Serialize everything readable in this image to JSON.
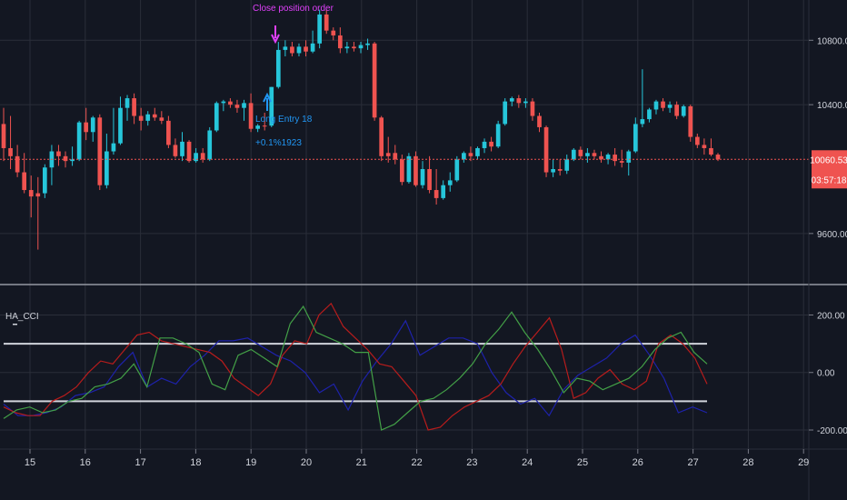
{
  "indicator": {
    "label": "HA_CCI"
  },
  "annotations": {
    "close_order": "Close position order",
    "long_entry": "Long Entry 18",
    "long_entry_pnl": "+0.1%1923"
  },
  "price_tag": {
    "value": "10060.53",
    "countdown": "03:57:18"
  },
  "colors": {
    "background": "#131722",
    "grid": "#2a2e39",
    "up": "#26c6da",
    "down": "#ef5350",
    "cci_blue": "#1e22aa",
    "cci_red": "#b71c1c",
    "cci_green": "#43a047",
    "level_line": "#d1d4dc",
    "annotation": "#e040fb",
    "entry": "#2196f3"
  },
  "chart_data": [
    {
      "type": "candlestick",
      "title": "",
      "ylim": [
        9300,
        11050
      ],
      "y_ticks": [
        "10800.00",
        "10400.00",
        "9600.00"
      ],
      "last_price": 10060.53,
      "candles": [
        {
          "o": 10280,
          "h": 10380,
          "l": 10050,
          "c": 10130,
          "d": "down"
        },
        {
          "o": 10130,
          "h": 10330,
          "l": 10000,
          "c": 10080,
          "d": "down"
        },
        {
          "o": 10080,
          "h": 10150,
          "l": 9950,
          "c": 9980,
          "d": "down"
        },
        {
          "o": 9980,
          "h": 10100,
          "l": 9850,
          "c": 9870,
          "d": "down"
        },
        {
          "o": 9870,
          "h": 9960,
          "l": 9700,
          "c": 9830,
          "d": "down"
        },
        {
          "o": 9830,
          "h": 9950,
          "l": 9500,
          "c": 9850,
          "d": "down"
        },
        {
          "o": 9850,
          "h": 10030,
          "l": 9820,
          "c": 10010,
          "d": "up"
        },
        {
          "o": 10010,
          "h": 10150,
          "l": 9900,
          "c": 10110,
          "d": "up"
        },
        {
          "o": 10110,
          "h": 10150,
          "l": 10020,
          "c": 10080,
          "d": "down"
        },
        {
          "o": 10080,
          "h": 10110,
          "l": 10010,
          "c": 10050,
          "d": "down"
        },
        {
          "o": 10050,
          "h": 10140,
          "l": 10020,
          "c": 10060,
          "d": "up"
        },
        {
          "o": 10060,
          "h": 10300,
          "l": 10050,
          "c": 10290,
          "d": "up"
        },
        {
          "o": 10290,
          "h": 10380,
          "l": 10180,
          "c": 10230,
          "d": "down"
        },
        {
          "o": 10230,
          "h": 10330,
          "l": 10170,
          "c": 10320,
          "d": "up"
        },
        {
          "o": 10320,
          "h": 10340,
          "l": 9870,
          "c": 9900,
          "d": "down"
        },
        {
          "o": 9900,
          "h": 10220,
          "l": 9880,
          "c": 10110,
          "d": "up"
        },
        {
          "o": 10110,
          "h": 10380,
          "l": 10090,
          "c": 10160,
          "d": "up"
        },
        {
          "o": 10160,
          "h": 10450,
          "l": 10150,
          "c": 10380,
          "d": "up"
        },
        {
          "o": 10380,
          "h": 10460,
          "l": 10300,
          "c": 10440,
          "d": "up"
        },
        {
          "o": 10440,
          "h": 10470,
          "l": 10280,
          "c": 10330,
          "d": "down"
        },
        {
          "o": 10330,
          "h": 10380,
          "l": 10240,
          "c": 10300,
          "d": "down"
        },
        {
          "o": 10300,
          "h": 10360,
          "l": 10270,
          "c": 10340,
          "d": "up"
        },
        {
          "o": 10340,
          "h": 10380,
          "l": 10300,
          "c": 10320,
          "d": "down"
        },
        {
          "o": 10320,
          "h": 10360,
          "l": 10280,
          "c": 10300,
          "d": "down"
        },
        {
          "o": 10300,
          "h": 10330,
          "l": 10130,
          "c": 10150,
          "d": "down"
        },
        {
          "o": 10150,
          "h": 10190,
          "l": 10070,
          "c": 10080,
          "d": "down"
        },
        {
          "o": 10080,
          "h": 10230,
          "l": 10050,
          "c": 10170,
          "d": "up"
        },
        {
          "o": 10170,
          "h": 10180,
          "l": 10040,
          "c": 10050,
          "d": "down"
        },
        {
          "o": 10050,
          "h": 10130,
          "l": 10040,
          "c": 10100,
          "d": "up"
        },
        {
          "o": 10100,
          "h": 10130,
          "l": 10040,
          "c": 10060,
          "d": "down"
        },
        {
          "o": 10060,
          "h": 10260,
          "l": 10050,
          "c": 10240,
          "d": "up"
        },
        {
          "o": 10240,
          "h": 10420,
          "l": 10230,
          "c": 10410,
          "d": "up"
        },
        {
          "o": 10410,
          "h": 10430,
          "l": 10360,
          "c": 10420,
          "d": "up"
        },
        {
          "o": 10420,
          "h": 10440,
          "l": 10380,
          "c": 10400,
          "d": "down"
        },
        {
          "o": 10400,
          "h": 10430,
          "l": 10350,
          "c": 10380,
          "d": "down"
        },
        {
          "o": 10380,
          "h": 10430,
          "l": 10300,
          "c": 10410,
          "d": "up"
        },
        {
          "o": 10410,
          "h": 10470,
          "l": 10230,
          "c": 10250,
          "d": "down"
        },
        {
          "o": 10250,
          "h": 10280,
          "l": 10230,
          "c": 10270,
          "d": "up"
        },
        {
          "o": 10270,
          "h": 10350,
          "l": 10240,
          "c": 10270,
          "d": "down"
        },
        {
          "o": 10270,
          "h": 10510,
          "l": 10260,
          "c": 10510,
          "d": "up"
        },
        {
          "o": 10510,
          "h": 10790,
          "l": 10500,
          "c": 10740,
          "d": "up"
        },
        {
          "o": 10740,
          "h": 10800,
          "l": 10700,
          "c": 10760,
          "d": "up"
        },
        {
          "o": 10760,
          "h": 10790,
          "l": 10700,
          "c": 10720,
          "d": "down"
        },
        {
          "o": 10720,
          "h": 10780,
          "l": 10700,
          "c": 10760,
          "d": "up"
        },
        {
          "o": 10760,
          "h": 10800,
          "l": 10700,
          "c": 10730,
          "d": "down"
        },
        {
          "o": 10730,
          "h": 10860,
          "l": 10720,
          "c": 10780,
          "d": "up"
        },
        {
          "o": 10780,
          "h": 10990,
          "l": 10750,
          "c": 10960,
          "d": "up"
        },
        {
          "o": 10960,
          "h": 10990,
          "l": 10840,
          "c": 10860,
          "d": "down"
        },
        {
          "o": 10860,
          "h": 10880,
          "l": 10800,
          "c": 10830,
          "d": "down"
        },
        {
          "o": 10830,
          "h": 10880,
          "l": 10720,
          "c": 10750,
          "d": "down"
        },
        {
          "o": 10750,
          "h": 10790,
          "l": 10720,
          "c": 10760,
          "d": "up"
        },
        {
          "o": 10760,
          "h": 10790,
          "l": 10730,
          "c": 10750,
          "d": "down"
        },
        {
          "o": 10750,
          "h": 10790,
          "l": 10720,
          "c": 10770,
          "d": "up"
        },
        {
          "o": 10770,
          "h": 10810,
          "l": 10740,
          "c": 10780,
          "d": "up"
        },
        {
          "o": 10780,
          "h": 10790,
          "l": 10300,
          "c": 10320,
          "d": "down"
        },
        {
          "o": 10320,
          "h": 10330,
          "l": 10050,
          "c": 10080,
          "d": "down"
        },
        {
          "o": 10080,
          "h": 10200,
          "l": 10040,
          "c": 10100,
          "d": "down"
        },
        {
          "o": 10100,
          "h": 10150,
          "l": 10030,
          "c": 10060,
          "d": "down"
        },
        {
          "o": 10060,
          "h": 10090,
          "l": 9900,
          "c": 9920,
          "d": "down"
        },
        {
          "o": 9920,
          "h": 10100,
          "l": 9910,
          "c": 10080,
          "d": "up"
        },
        {
          "o": 10080,
          "h": 10110,
          "l": 9890,
          "c": 9900,
          "d": "down"
        },
        {
          "o": 9900,
          "h": 10050,
          "l": 9880,
          "c": 10000,
          "d": "up"
        },
        {
          "o": 10000,
          "h": 10080,
          "l": 9850,
          "c": 9870,
          "d": "down"
        },
        {
          "o": 9870,
          "h": 10000,
          "l": 9780,
          "c": 9820,
          "d": "down"
        },
        {
          "o": 9820,
          "h": 9930,
          "l": 9810,
          "c": 9900,
          "d": "up"
        },
        {
          "o": 9900,
          "h": 9980,
          "l": 9860,
          "c": 9930,
          "d": "up"
        },
        {
          "o": 9930,
          "h": 10080,
          "l": 9920,
          "c": 10060,
          "d": "up"
        },
        {
          "o": 10060,
          "h": 10110,
          "l": 10040,
          "c": 10100,
          "d": "up"
        },
        {
          "o": 10100,
          "h": 10140,
          "l": 10050,
          "c": 10080,
          "d": "down"
        },
        {
          "o": 10080,
          "h": 10140,
          "l": 10060,
          "c": 10130,
          "d": "up"
        },
        {
          "o": 10130,
          "h": 10190,
          "l": 10100,
          "c": 10170,
          "d": "up"
        },
        {
          "o": 10170,
          "h": 10200,
          "l": 10110,
          "c": 10140,
          "d": "down"
        },
        {
          "o": 10140,
          "h": 10300,
          "l": 10130,
          "c": 10280,
          "d": "up"
        },
        {
          "o": 10280,
          "h": 10440,
          "l": 10270,
          "c": 10420,
          "d": "up"
        },
        {
          "o": 10420,
          "h": 10450,
          "l": 10390,
          "c": 10440,
          "d": "up"
        },
        {
          "o": 10440,
          "h": 10460,
          "l": 10380,
          "c": 10410,
          "d": "down"
        },
        {
          "o": 10410,
          "h": 10440,
          "l": 10380,
          "c": 10420,
          "d": "up"
        },
        {
          "o": 10420,
          "h": 10440,
          "l": 10300,
          "c": 10330,
          "d": "down"
        },
        {
          "o": 10330,
          "h": 10350,
          "l": 10230,
          "c": 10260,
          "d": "down"
        },
        {
          "o": 10260,
          "h": 10270,
          "l": 9950,
          "c": 9980,
          "d": "down"
        },
        {
          "o": 9980,
          "h": 10060,
          "l": 9950,
          "c": 10000,
          "d": "up"
        },
        {
          "o": 10000,
          "h": 10060,
          "l": 9960,
          "c": 9990,
          "d": "down"
        },
        {
          "o": 9990,
          "h": 10090,
          "l": 9970,
          "c": 10060,
          "d": "up"
        },
        {
          "o": 10060,
          "h": 10130,
          "l": 10050,
          "c": 10120,
          "d": "up"
        },
        {
          "o": 10120,
          "h": 10140,
          "l": 10060,
          "c": 10080,
          "d": "down"
        },
        {
          "o": 10080,
          "h": 10130,
          "l": 10040,
          "c": 10100,
          "d": "up"
        },
        {
          "o": 10100,
          "h": 10120,
          "l": 10060,
          "c": 10080,
          "d": "down"
        },
        {
          "o": 10080,
          "h": 10110,
          "l": 10040,
          "c": 10060,
          "d": "down"
        },
        {
          "o": 10060,
          "h": 10100,
          "l": 10030,
          "c": 10090,
          "d": "up"
        },
        {
          "o": 10090,
          "h": 10130,
          "l": 10020,
          "c": 10050,
          "d": "down"
        },
        {
          "o": 10050,
          "h": 10120,
          "l": 10010,
          "c": 10040,
          "d": "down"
        },
        {
          "o": 10040,
          "h": 10120,
          "l": 9960,
          "c": 10110,
          "d": "up"
        },
        {
          "o": 10110,
          "h": 10320,
          "l": 10100,
          "c": 10280,
          "d": "up"
        },
        {
          "o": 10280,
          "h": 10620,
          "l": 10260,
          "c": 10310,
          "d": "up"
        },
        {
          "o": 10310,
          "h": 10380,
          "l": 10290,
          "c": 10370,
          "d": "up"
        },
        {
          "o": 10370,
          "h": 10430,
          "l": 10340,
          "c": 10420,
          "d": "up"
        },
        {
          "o": 10420,
          "h": 10440,
          "l": 10360,
          "c": 10380,
          "d": "down"
        },
        {
          "o": 10380,
          "h": 10420,
          "l": 10350,
          "c": 10400,
          "d": "up"
        },
        {
          "o": 10400,
          "h": 10420,
          "l": 10310,
          "c": 10330,
          "d": "down"
        },
        {
          "o": 10330,
          "h": 10400,
          "l": 10320,
          "c": 10390,
          "d": "up"
        },
        {
          "o": 10390,
          "h": 10400,
          "l": 10170,
          "c": 10200,
          "d": "down"
        },
        {
          "o": 10200,
          "h": 10220,
          "l": 10130,
          "c": 10150,
          "d": "down"
        },
        {
          "o": 10150,
          "h": 10190,
          "l": 10090,
          "c": 10130,
          "d": "down"
        },
        {
          "o": 10130,
          "h": 10190,
          "l": 10080,
          "c": 10090,
          "d": "down"
        },
        {
          "o": 10090,
          "h": 10100,
          "l": 10050,
          "c": 10060,
          "d": "down"
        }
      ]
    },
    {
      "type": "line",
      "title": "",
      "ylim": [
        -260,
        290
      ],
      "y_ticks": [
        "200.00",
        "0.00",
        "-200.00"
      ],
      "levels": [
        100,
        -100
      ],
      "x_labels": [
        "15",
        "16",
        "17",
        "18",
        "19",
        "20",
        "21",
        "22",
        "23",
        "24",
        "25",
        "26",
        "27",
        "28",
        "29"
      ],
      "series": [
        {
          "color": "blue",
          "values": [
            -110,
            -150,
            -150,
            -140,
            -120,
            -80,
            -70,
            -50,
            20,
            70,
            -50,
            -20,
            -40,
            20,
            60,
            110,
            110,
            120,
            90,
            60,
            40,
            0,
            -70,
            -40,
            -130,
            -30,
            40,
            100,
            180,
            60,
            90,
            120,
            120,
            100,
            0,
            -70,
            -110,
            -90,
            -150,
            -60,
            -10,
            20,
            50,
            100,
            130,
            60,
            -20,
            -140,
            -120,
            -140
          ]
        },
        {
          "color": "red",
          "values": [
            -120,
            -140,
            -150,
            -150,
            -100,
            -80,
            -50,
            0,
            40,
            30,
            80,
            130,
            140,
            110,
            100,
            90,
            80,
            70,
            40,
            -20,
            -50,
            -80,
            -40,
            60,
            110,
            100,
            200,
            240,
            160,
            120,
            80,
            30,
            20,
            -30,
            -80,
            -200,
            -190,
            -150,
            -120,
            -100,
            -80,
            -40,
            30,
            90,
            140,
            190,
            80,
            -90,
            -70,
            -20,
            10,
            -40,
            -60,
            -30,
            100,
            130,
            100,
            50,
            -40
          ]
        },
        {
          "color": "green",
          "values": [
            -160,
            -130,
            -120,
            -140,
            -130,
            -100,
            -90,
            -50,
            -40,
            -20,
            30,
            -50,
            120,
            120,
            100,
            70,
            -40,
            -60,
            60,
            80,
            50,
            20,
            170,
            230,
            140,
            120,
            100,
            70,
            70,
            -200,
            -180,
            -140,
            -100,
            -90,
            -60,
            -20,
            30,
            100,
            150,
            210,
            140,
            80,
            10,
            -70,
            -20,
            -30,
            -60,
            -40,
            -20,
            20,
            80,
            120,
            140,
            70,
            30
          ]
        }
      ]
    }
  ]
}
